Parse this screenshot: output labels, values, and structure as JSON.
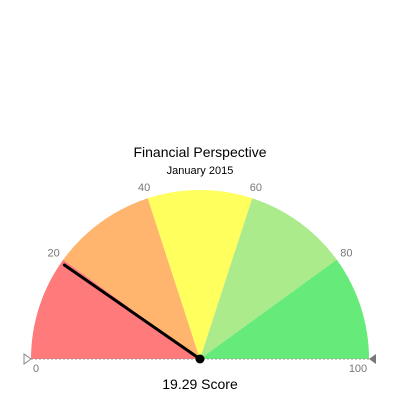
{
  "chart_data": {
    "type": "gauge",
    "title": "Financial Perspective",
    "subtitle": "January 2015",
    "range": [
      0,
      100
    ],
    "value": 19.29,
    "value_label": "19.29 Score",
    "bands": [
      {
        "from": 0,
        "to": 20,
        "color": "#ff7a7a"
      },
      {
        "from": 20,
        "to": 40,
        "color": "#ffb56e"
      },
      {
        "from": 40,
        "to": 60,
        "color": "#ffff5e"
      },
      {
        "from": 60,
        "to": 80,
        "color": "#abeb8c"
      },
      {
        "from": 80,
        "to": 100,
        "color": "#66eb7a"
      }
    ],
    "tick_labels": [
      "0",
      "20",
      "40",
      "60",
      "80",
      "100"
    ],
    "tick_values": [
      0,
      20,
      40,
      60,
      80,
      100
    ]
  }
}
